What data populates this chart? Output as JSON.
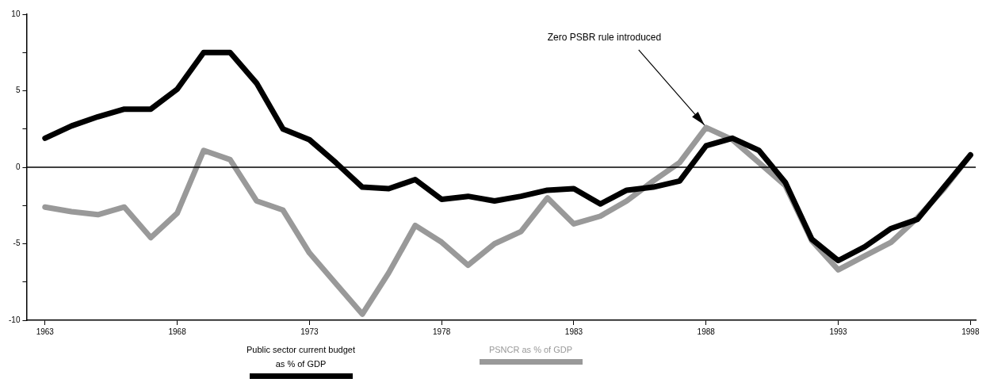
{
  "chart_data": {
    "type": "line",
    "x": [
      1963,
      1964,
      1965,
      1966,
      1967,
      1968,
      1969,
      1970,
      1971,
      1972,
      1973,
      1974,
      1975,
      1976,
      1977,
      1978,
      1979,
      1980,
      1981,
      1982,
      1983,
      1984,
      1985,
      1986,
      1987,
      1988,
      1989,
      1990,
      1991,
      1992,
      1993,
      1994,
      1995,
      1996,
      1997,
      1998
    ],
    "series": [
      {
        "name": "Public sector current budget as % of GDP",
        "color": "#000000",
        "values": [
          1.9,
          2.7,
          3.3,
          3.8,
          3.8,
          5.1,
          7.5,
          7.5,
          5.5,
          2.5,
          1.8,
          0.3,
          -1.3,
          -1.4,
          -0.8,
          -2.1,
          -1.9,
          -2.2,
          -1.9,
          -1.5,
          -1.4,
          -2.4,
          -1.5,
          -1.3,
          -0.9,
          1.4,
          1.9,
          1.1,
          -1.0,
          -4.7,
          -6.1,
          -5.2,
          -4.0,
          -3.4,
          -1.3,
          0.8
        ]
      },
      {
        "name": "PSNCR as % of GDP",
        "color": "#999999",
        "values": [
          -2.6,
          -2.9,
          -3.1,
          -2.6,
          -4.6,
          -3.0,
          1.1,
          0.5,
          -2.2,
          -2.8,
          -5.6,
          -7.6,
          -9.6,
          -6.9,
          -3.8,
          -4.9,
          -6.4,
          -5.0,
          -4.2,
          -2.0,
          -3.7,
          -3.2,
          -2.2,
          -0.9,
          0.3,
          2.6,
          1.8,
          0.3,
          -1.2,
          -4.8,
          -6.7,
          -5.8,
          -4.9,
          -3.3,
          -1.4,
          0.8
        ]
      }
    ],
    "xlim": [
      1962.3,
      1998.2
    ],
    "xticks": [
      1963,
      1968,
      1973,
      1978,
      1983,
      1988,
      1993,
      1998
    ],
    "ylim": [
      -10,
      10
    ],
    "yticks": [
      -10,
      {
        "value": -7.5,
        "label": null
      },
      -5,
      {
        "value": -2.5,
        "label": null
      },
      0,
      {
        "value": 2.5,
        "label": null
      },
      5,
      {
        "value": 7.5,
        "label": null
      },
      10
    ],
    "ref_lines": [
      {
        "axis": "y",
        "value": 0,
        "color": "#000000"
      }
    ],
    "annotations": [
      {
        "text": "Zero PSBR rule introduced",
        "x": 1988,
        "y": 2.6
      }
    ],
    "grid": false,
    "legend": "bottom",
    "marker": "none",
    "line_style": "solid"
  }
}
